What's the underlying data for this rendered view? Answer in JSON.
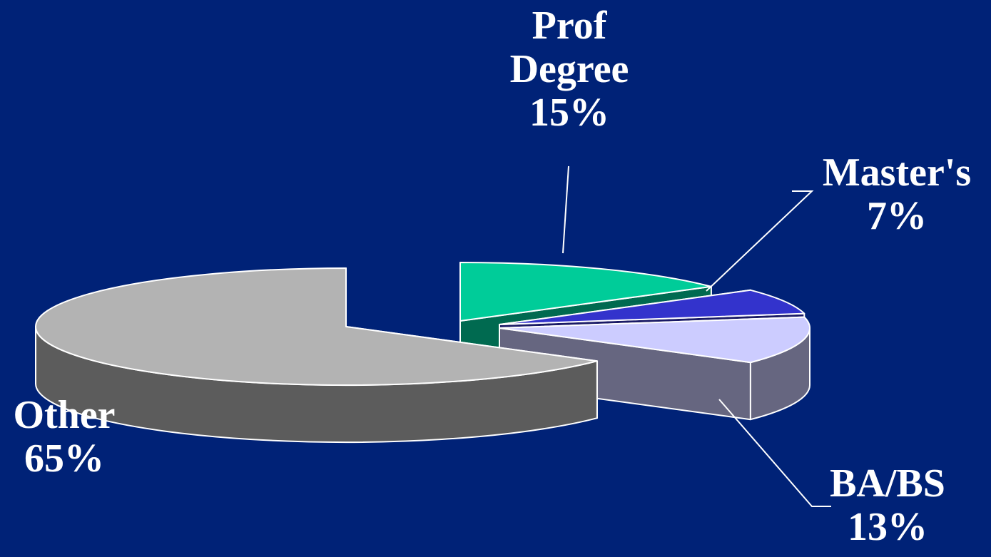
{
  "chart_data": {
    "type": "pie",
    "three_d": true,
    "exploded": true,
    "labels": [
      {
        "category": "Prof Degree",
        "lines": [
          "Prof",
          "Degree"
        ],
        "value_label": "15%"
      },
      {
        "category": "Master's",
        "lines": [
          "Master's"
        ],
        "value_label": "7%"
      },
      {
        "category": "BA/BS",
        "lines": [
          "BA/BS"
        ],
        "value_label": "13%"
      },
      {
        "category": "Other",
        "lines": [
          "Other"
        ],
        "value_label": "65%"
      }
    ],
    "slices": [
      {
        "name": "Prof Degree",
        "value": 15,
        "top_color": "#00cc99",
        "side_color": "#006a50"
      },
      {
        "name": "Master's",
        "value": 7,
        "top_color": "#3333cc",
        "side_color": "#1a1a66"
      },
      {
        "name": "BA/BS",
        "value": 13,
        "top_color": "#ccccff",
        "side_color": "#666680"
      },
      {
        "name": "Other",
        "value": 65,
        "top_color": "#b3b3b3",
        "side_color": "#5c5c5c"
      }
    ],
    "colors": {
      "background": "#002277",
      "text": "#ffffff",
      "outline": "#ffffff"
    }
  }
}
